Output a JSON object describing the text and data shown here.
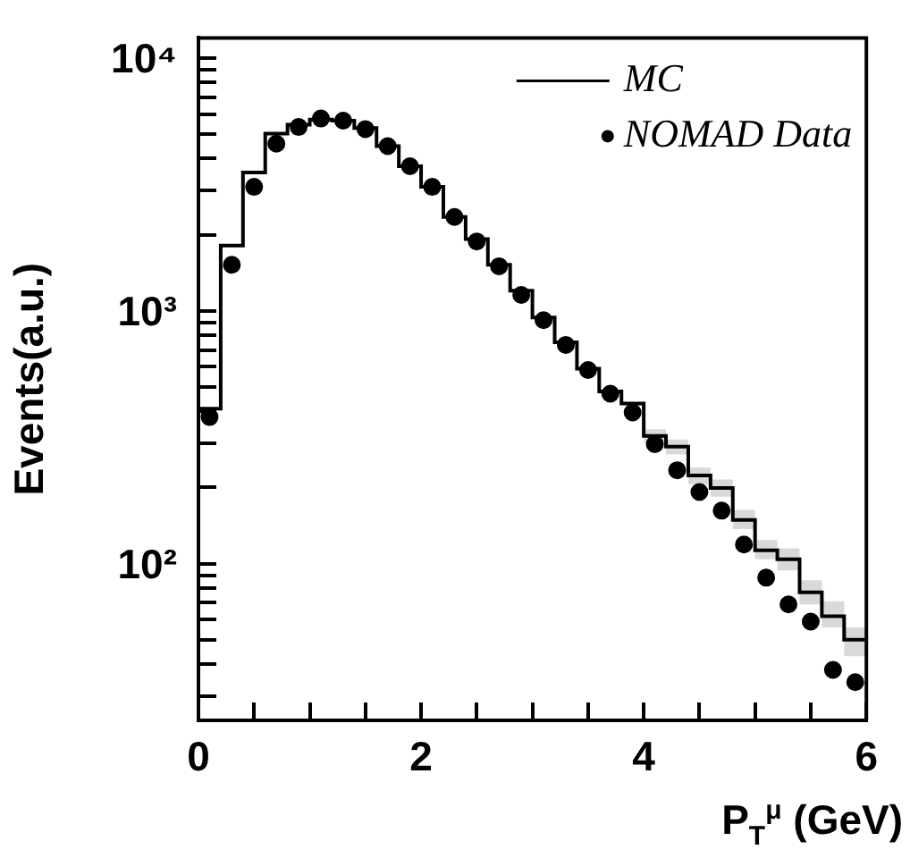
{
  "chart_data": {
    "type": "step",
    "xlabel": "P$_{T}$$^{μ}$ (GeV)",
    "ylabel": "Events(a.u.)",
    "series": [
      {
        "name": "MC",
        "color": "#000000",
        "x": [
          0,
          0.2,
          0.4,
          0.6,
          0.8,
          1.0,
          1.2,
          1.4,
          1.6,
          1.8,
          2.0,
          2.2,
          2.4,
          2.6,
          2.8,
          3.0,
          3.2,
          3.4,
          3.6,
          3.8,
          4.0,
          4.2,
          4.4,
          4.6,
          4.8,
          5.0,
          5.2,
          5.4,
          5.6,
          5.8,
          6.0
        ],
        "values": [
          410,
          1810,
          3520,
          5020,
          5440,
          5710,
          5650,
          5280,
          4480,
          3730,
          3090,
          2350,
          1920,
          1520,
          1200,
          940,
          750,
          590,
          480,
          430,
          320,
          290,
          223,
          199,
          149,
          113,
          104,
          77,
          62,
          50,
          50
        ],
        "lower": [
          null,
          null,
          null,
          null,
          null,
          null,
          null,
          null,
          null,
          null,
          null,
          null,
          null,
          null,
          null,
          null,
          null,
          null,
          null,
          null,
          300,
          270,
          206,
          184,
          137,
          104,
          94,
          69,
          56,
          43,
          43
        ],
        "upper": [
          null,
          null,
          null,
          null,
          null,
          null,
          null,
          null,
          null,
          null,
          null,
          null,
          null,
          null,
          null,
          null,
          null,
          null,
          null,
          null,
          340,
          310,
          240,
          215,
          163,
          124,
          115,
          86,
          71,
          56,
          56
        ]
      },
      {
        "name": "NOMAD Data",
        "type": "scatter",
        "color": "#000000",
        "marker": "circle",
        "x": [
          0.1,
          0.3,
          0.5,
          0.7,
          0.9,
          1.1,
          1.3,
          1.5,
          1.7,
          1.9,
          2.1,
          2.3,
          2.5,
          2.7,
          2.9,
          3.1,
          3.3,
          3.5,
          3.7,
          3.9,
          4.1,
          4.3,
          4.5,
          4.7,
          4.9,
          5.1,
          5.3,
          5.5,
          5.7,
          5.9
        ],
        "values": [
          380,
          1520,
          3090,
          4580,
          5330,
          5760,
          5650,
          5230,
          4480,
          3730,
          3090,
          2350,
          1880,
          1500,
          1155,
          918,
          733,
          583,
          470,
          396,
          297,
          234,
          192,
          162,
          119,
          88,
          69,
          59,
          38,
          34
        ]
      }
    ],
    "xlim": [
      0,
      6
    ],
    "xticks": [
      0,
      {
        "value": 0.5,
        "label": null
      },
      {
        "value": 1,
        "label": null
      },
      {
        "value": 1.5,
        "label": null
      },
      2,
      {
        "value": 2.5,
        "label": null
      },
      {
        "value": 3,
        "label": null
      },
      {
        "value": 3.5,
        "label": null
      },
      4,
      {
        "value": 4.5,
        "label": null
      },
      {
        "value": 5,
        "label": null
      },
      {
        "value": 5.5,
        "label": null
      },
      6
    ],
    "ylim": [
      24,
      12000
    ],
    "log": "y",
    "yticks": [
      {
        "value": 30,
        "label": null
      },
      {
        "value": 40,
        "label": null
      },
      {
        "value": 50,
        "label": null
      },
      {
        "value": 60,
        "label": null
      },
      {
        "value": 70,
        "label": null
      },
      {
        "value": 80,
        "label": null
      },
      {
        "value": 90,
        "label": null
      },
      {
        "value": 100,
        "label": "10²"
      },
      {
        "value": 200,
        "label": null
      },
      {
        "value": 300,
        "label": null
      },
      {
        "value": 400,
        "label": null
      },
      {
        "value": 500,
        "label": null
      },
      {
        "value": 600,
        "label": null
      },
      {
        "value": 700,
        "label": null
      },
      {
        "value": 800,
        "label": null
      },
      {
        "value": 900,
        "label": null
      },
      {
        "value": 1000,
        "label": "10³"
      },
      {
        "value": 2000,
        "label": null
      },
      {
        "value": 3000,
        "label": null
      },
      {
        "value": 4000,
        "label": null
      },
      {
        "value": 5000,
        "label": null
      },
      {
        "value": 6000,
        "label": null
      },
      {
        "value": 7000,
        "label": null
      },
      {
        "value": 8000,
        "label": null
      },
      {
        "value": 9000,
        "label": null
      },
      {
        "value": 10000,
        "label": "10⁴"
      }
    ],
    "grid": false,
    "legend": "top right"
  }
}
